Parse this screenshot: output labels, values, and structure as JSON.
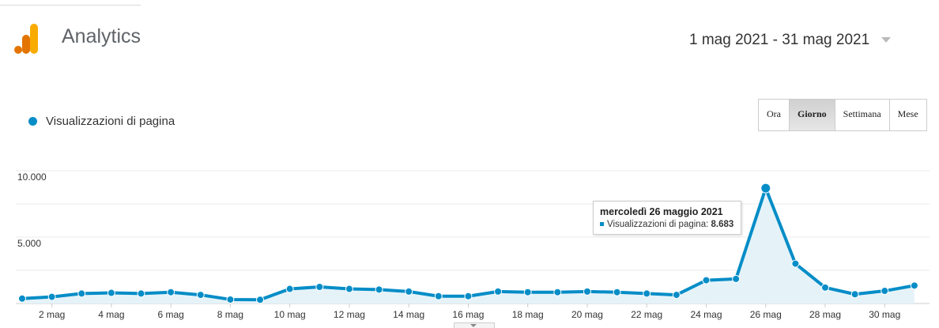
{
  "header": {
    "app_title": "Analytics",
    "date_range": "1 mag 2021 - 31 mag 2021",
    "logo_icon": "analytics-logo",
    "logo_colors": [
      "#e37400",
      "#f9ab00",
      "#f9ab00"
    ]
  },
  "range_buttons": [
    {
      "label": "Ora",
      "active": false
    },
    {
      "label": "Giorno",
      "active": true
    },
    {
      "label": "Settimana",
      "active": false
    },
    {
      "label": "Mese",
      "active": false
    }
  ],
  "chart_data": {
    "type": "area",
    "series": [
      {
        "name": "Visualizzazioni di pagina",
        "color": "#058dc7",
        "x": [
          "1 mag",
          "2 mag",
          "3 mag",
          "4 mag",
          "5 mag",
          "6 mag",
          "7 mag",
          "8 mag",
          "9 mag",
          "10 mag",
          "11 mag",
          "12 mag",
          "13 mag",
          "14 mag",
          "15 mag",
          "16 mag",
          "17 mag",
          "18 mag",
          "19 mag",
          "20 mag",
          "21 mag",
          "22 mag",
          "23 mag",
          "24 mag",
          "25 mag",
          "26 mag",
          "27 mag",
          "28 mag",
          "29 mag",
          "30 mag",
          "31 mag"
        ],
        "values": [
          370,
          500,
          750,
          800,
          750,
          850,
          650,
          300,
          280,
          1100,
          1250,
          1100,
          1050,
          900,
          550,
          550,
          900,
          850,
          850,
          900,
          850,
          750,
          650,
          1750,
          1850,
          8683,
          3000,
          1200,
          700,
          950,
          1350
        ]
      }
    ],
    "ylim": [
      0,
      10000
    ],
    "yticks": [
      {
        "value": 5000,
        "label": "5.000"
      },
      {
        "value": 10000,
        "label": "10.000"
      }
    ],
    "xticks": [
      "2 mag",
      "4 mag",
      "6 mag",
      "8 mag",
      "10 mag",
      "12 mag",
      "14 mag",
      "16 mag",
      "18 mag",
      "20 mag",
      "22 mag",
      "24 mag",
      "26 mag",
      "28 mag",
      "30 mag"
    ],
    "grid": true,
    "legend_position": "top-left",
    "tooltip": {
      "index": 25,
      "date": "mercoledì 26 maggio 2021",
      "series_label": "Visualizzazioni di pagina:",
      "value": "8.683"
    }
  }
}
